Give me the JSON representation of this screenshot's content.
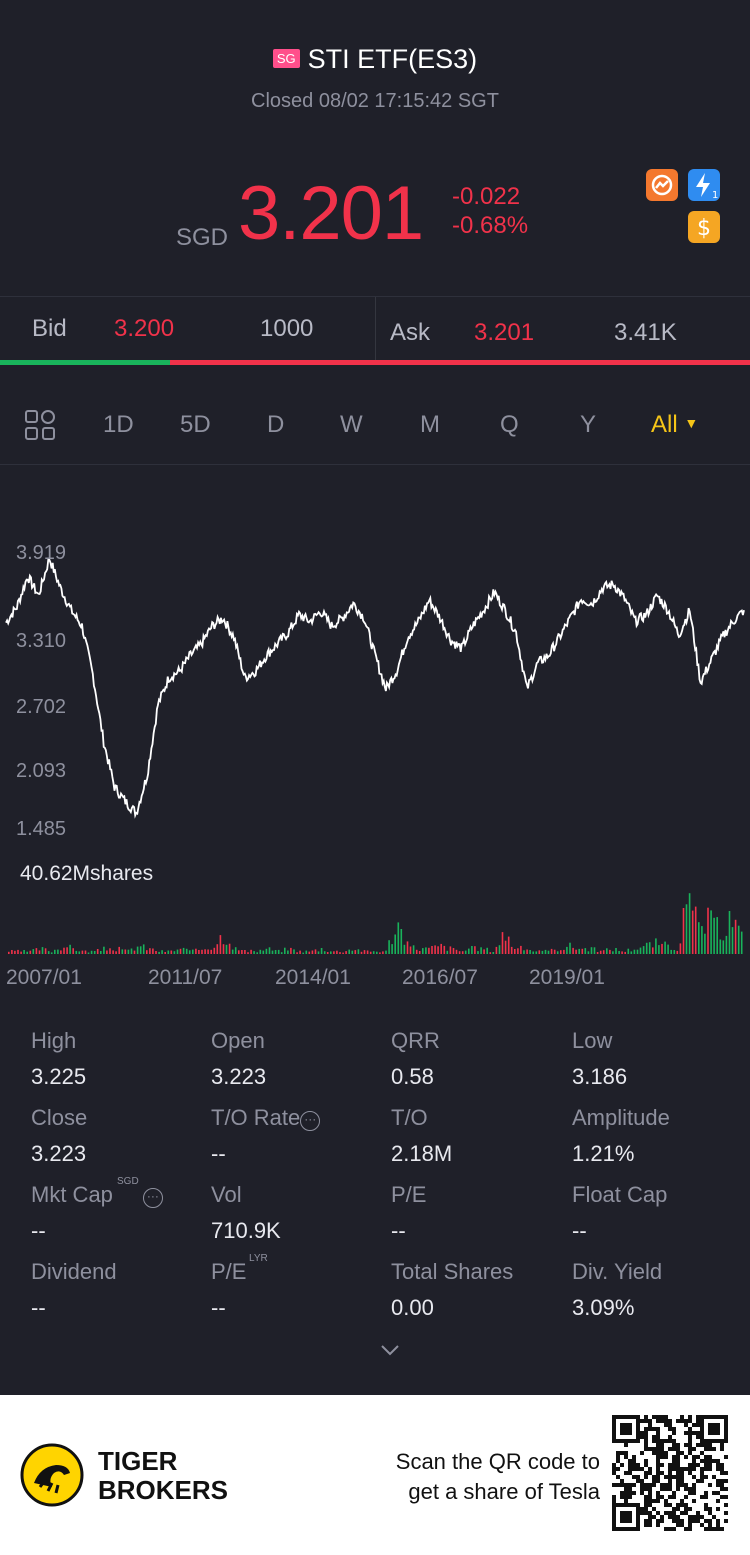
{
  "header": {
    "badge": "SG",
    "title": "STI ETF(ES3)",
    "status": "Closed 08/02 17:15:42 SGT",
    "currency": "SGD",
    "price": "3.201",
    "change": "-0.022",
    "change_pct": "-0.68%",
    "icons": [
      "trade-icon",
      "lightning-level1-icon",
      "dollar-icon"
    ],
    "colors": {
      "down": "#f1324a",
      "up": "#19b35b",
      "accent": "#f5c518"
    }
  },
  "bid_ask": {
    "bid_label": "Bid",
    "bid_price": "3.200",
    "bid_size": "1000",
    "ask_label": "Ask",
    "ask_price": "3.201",
    "ask_size": "3.41K",
    "bid_share": 0.227
  },
  "tabs": {
    "items": [
      "1D",
      "5D",
      "D",
      "W",
      "M",
      "Q",
      "Y",
      "All"
    ],
    "active": "All"
  },
  "chart_data": {
    "type": "line",
    "y_ticks": [
      "3.919",
      "3.310",
      "2.702",
      "2.093",
      "1.485"
    ],
    "ylim": [
      1.485,
      3.919
    ],
    "x_ticks": [
      "2007/01",
      "2011/07",
      "2014/01",
      "2016/07",
      "2019/01"
    ],
    "volume_label": "40.62Mshares",
    "series": [
      {
        "values": [
          3.31,
          3.45,
          3.72,
          3.55,
          3.88,
          3.62,
          3.42,
          3.28,
          2.85,
          2.25,
          1.85,
          1.72,
          1.62,
          1.95,
          2.58,
          2.82,
          2.88,
          3.02,
          3.12,
          3.28,
          3.35,
          3.18,
          2.82,
          2.88,
          3.02,
          3.12,
          3.22,
          3.38,
          3.32,
          3.41,
          3.28,
          3.35,
          3.48,
          3.35,
          3.02,
          2.72,
          2.88,
          3.18,
          3.32,
          3.51,
          3.35,
          3.15,
          3.08,
          3.28,
          3.42,
          3.58,
          3.42,
          3.22,
          2.72,
          2.95,
          3.02,
          3.18,
          3.35,
          3.52,
          3.48,
          3.62,
          3.65,
          3.52,
          3.32,
          3.38,
          3.55,
          3.42,
          3.2,
          3.42,
          2.78,
          2.98,
          3.18,
          3.32,
          3.42
        ]
      }
    ],
    "volume": [
      1,
      1,
      1,
      2,
      1,
      3,
      2,
      1,
      1,
      2,
      2,
      1,
      3,
      2,
      1,
      1,
      2,
      1,
      2,
      3,
      8,
      2,
      1,
      1,
      2,
      1,
      2,
      1,
      1,
      2,
      1,
      1,
      2,
      1,
      1,
      1,
      12,
      3,
      2,
      2,
      3,
      2,
      1,
      2,
      2,
      1,
      8,
      2,
      2,
      1,
      1,
      2,
      3,
      2,
      2,
      1,
      2,
      1,
      2,
      3,
      4,
      3,
      2,
      18,
      10,
      12,
      8,
      14,
      6
    ]
  },
  "stats": [
    {
      "label": "High",
      "value": "3.225"
    },
    {
      "label": "Open",
      "value": "3.223"
    },
    {
      "label": "QRR",
      "value": "0.58"
    },
    {
      "label": "Low",
      "value": "3.186"
    },
    {
      "label": "Close",
      "value": "3.223"
    },
    {
      "label": "T/O Rate",
      "value": "--"
    },
    {
      "label": "T/O",
      "value": "2.18M"
    },
    {
      "label": "Amplitude",
      "value": "1.21%"
    },
    {
      "label": "Mkt Cap",
      "value": "--",
      "sup": "SGD"
    },
    {
      "label": "Vol",
      "value": "710.9K"
    },
    {
      "label": "P/E",
      "value": "--"
    },
    {
      "label": "Float Cap",
      "value": "--"
    },
    {
      "label": "Dividend",
      "value": "--"
    },
    {
      "label": "P/E",
      "value": "--",
      "sup": "LYR"
    },
    {
      "label": "Total Shares",
      "value": "0.00"
    },
    {
      "label": "Div. Yield",
      "value": "3.09%"
    }
  ],
  "footer": {
    "brand_line1": "TIGER",
    "brand_line2": "BROKERS",
    "scan_line1": "Scan the QR code to",
    "scan_line2": "get a share of Tesla"
  }
}
